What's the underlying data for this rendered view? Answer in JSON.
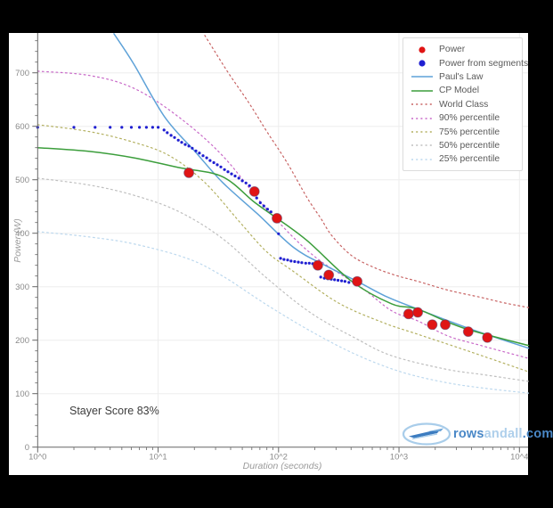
{
  "annotations": {
    "stayer_score": "Stayer Score 83%"
  },
  "logo": {
    "part1": "rows",
    "part2": "andall",
    "part3": ".com"
  },
  "legend": {
    "items": [
      {
        "label": "Power",
        "marker": "dot",
        "color": "#e01414"
      },
      {
        "label": "Power from segments",
        "marker": "dot",
        "color": "#1f1fd1"
      },
      {
        "label": "Paul's Law",
        "marker": "line",
        "color": "#5fa2d8"
      },
      {
        "label": "CP Model",
        "marker": "line",
        "color": "#3c9e3c"
      },
      {
        "label": "World Class",
        "marker": "dash",
        "color": "#c86464"
      },
      {
        "label": "90% percentile",
        "marker": "dash",
        "color": "#c868c8"
      },
      {
        "label": "75% percentile",
        "marker": "dash",
        "color": "#b3b060"
      },
      {
        "label": "50% percentile",
        "marker": "dash",
        "color": "#bfbfbf"
      },
      {
        "label": "25% percentile",
        "marker": "dash",
        "color": "#bcd8ee"
      }
    ]
  },
  "chart_data": {
    "type": "scatter",
    "title": "",
    "xlabel": "Duration (seconds)",
    "ylabel": "Power (W)",
    "x_axis": {
      "scale": "log",
      "range": [
        1,
        12000
      ],
      "tick_labels": [
        "10^0",
        "10^1",
        "10^2",
        "10^3",
        "10^4"
      ],
      "tick_values": [
        1,
        10,
        100,
        1000,
        10000
      ]
    },
    "y_axis": {
      "scale": "linear",
      "range": [
        0,
        775
      ],
      "tick_labels": [
        "0",
        "100",
        "200",
        "300",
        "400",
        "500",
        "600",
        "700"
      ],
      "tick_values": [
        0,
        100,
        200,
        300,
        400,
        500,
        600,
        700
      ]
    },
    "grid": true,
    "legend_position": "top-right",
    "series": [
      {
        "name": "Power",
        "type": "scatter",
        "color": "#e01414",
        "size": 11,
        "points": [
          [
            18,
            513
          ],
          [
            63,
            478
          ],
          [
            97,
            428
          ],
          [
            212,
            340
          ],
          [
            261,
            322
          ],
          [
            450,
            310
          ],
          [
            1200,
            249
          ],
          [
            1430,
            252
          ],
          [
            1890,
            229
          ],
          [
            2420,
            229
          ],
          [
            3760,
            216
          ],
          [
            5420,
            205
          ]
        ]
      },
      {
        "name": "Power from segments",
        "type": "scatter",
        "color": "#1f1fd1",
        "size": 3.2,
        "points": [
          [
            1,
            598
          ],
          [
            2,
            598
          ],
          [
            3,
            598
          ],
          [
            4,
            598
          ],
          [
            5,
            598
          ],
          [
            6,
            598
          ],
          [
            7,
            598
          ],
          [
            8,
            598
          ],
          [
            9,
            598
          ],
          [
            10,
            598
          ],
          [
            11.2,
            593
          ],
          [
            11.9,
            588
          ],
          [
            12.8,
            583
          ],
          [
            13.7,
            579
          ],
          [
            14.7,
            574
          ],
          [
            15.7,
            570
          ],
          [
            16.8,
            566
          ],
          [
            18,
            563
          ],
          [
            19.2,
            559
          ],
          [
            20.6,
            554
          ],
          [
            22,
            550
          ],
          [
            23.6,
            545
          ],
          [
            25.3,
            541
          ],
          [
            27,
            536
          ],
          [
            29,
            532
          ],
          [
            31,
            528
          ],
          [
            33.2,
            524
          ],
          [
            35.6,
            519
          ],
          [
            38,
            515
          ],
          [
            40.7,
            511
          ],
          [
            43.6,
            507
          ],
          [
            46.8,
            503
          ],
          [
            50,
            498
          ],
          [
            53.6,
            494
          ],
          [
            57.4,
            489
          ],
          [
            61.5,
            481
          ],
          [
            65.8,
            466
          ],
          [
            70.5,
            457
          ],
          [
            75.5,
            451
          ],
          [
            80.9,
            445
          ],
          [
            86.6,
            440
          ],
          [
            93,
            423
          ],
          [
            100,
            399
          ],
          [
            104,
            353
          ],
          [
            111,
            351
          ],
          [
            119,
            350
          ],
          [
            127,
            348
          ],
          [
            136,
            347
          ],
          [
            146,
            346
          ],
          [
            156,
            345
          ],
          [
            168,
            344
          ],
          [
            180,
            344
          ],
          [
            192,
            343
          ],
          [
            224,
            318
          ],
          [
            240,
            316
          ],
          [
            256,
            315
          ],
          [
            274,
            314
          ],
          [
            292,
            313
          ],
          [
            312,
            312
          ],
          [
            334,
            311
          ],
          [
            356,
            310
          ],
          [
            384,
            308
          ]
        ]
      },
      {
        "name": "Paul's Law",
        "type": "line",
        "color": "#5fa2d8",
        "dash": "solid",
        "points": [
          [
            4.3,
            773
          ],
          [
            6.3,
            716
          ],
          [
            11.3,
            618
          ],
          [
            20.6,
            551
          ],
          [
            34.3,
            495
          ],
          [
            67,
            436
          ],
          [
            134,
            373
          ],
          [
            243,
            340
          ],
          [
            450,
            310
          ],
          [
            795,
            281
          ],
          [
            1437,
            258
          ],
          [
            4030,
            220
          ],
          [
            11900,
            185
          ]
        ]
      },
      {
        "name": "CP Model",
        "type": "line",
        "color": "#3c9e3c",
        "dash": "solid",
        "points": [
          [
            1,
            560
          ],
          [
            2.7,
            553
          ],
          [
            6.3,
            541
          ],
          [
            14.7,
            523
          ],
          [
            34,
            506
          ],
          [
            63,
            458
          ],
          [
            97,
            428
          ],
          [
            173,
            386
          ],
          [
            405,
            310
          ],
          [
            869,
            268
          ],
          [
            1437,
            258
          ],
          [
            3400,
            223
          ],
          [
            11900,
            190
          ]
        ]
      },
      {
        "name": "World Class",
        "type": "line",
        "color": "#c86464",
        "dash": "dotted",
        "points": [
          [
            24.4,
            770
          ],
          [
            37.5,
            703
          ],
          [
            57,
            643
          ],
          [
            80,
            590
          ],
          [
            117,
            533
          ],
          [
            173,
            466
          ],
          [
            224,
            428
          ],
          [
            278,
            395
          ],
          [
            405,
            358
          ],
          [
            620,
            336
          ],
          [
            948,
            321
          ],
          [
            1437,
            310
          ],
          [
            2610,
            293
          ],
          [
            4800,
            280
          ],
          [
            7400,
            270
          ],
          [
            11900,
            261
          ]
        ]
      },
      {
        "name": "90% percentile",
        "type": "line",
        "color": "#c868c8",
        "dash": "dotted",
        "points": [
          [
            1,
            703
          ],
          [
            2.7,
            695
          ],
          [
            6.3,
            671
          ],
          [
            14.7,
            618
          ],
          [
            34.3,
            545
          ],
          [
            80,
            445
          ],
          [
            188,
            361
          ],
          [
            490,
            298
          ],
          [
            869,
            255
          ],
          [
            1437,
            236
          ],
          [
            2540,
            208
          ],
          [
            4800,
            190
          ],
          [
            11900,
            166
          ]
        ]
      },
      {
        "name": "75% percentile",
        "type": "line",
        "color": "#b3b060",
        "dash": "dotted",
        "points": [
          [
            1,
            603
          ],
          [
            2.7,
            590
          ],
          [
            6.3,
            570
          ],
          [
            12.4,
            545
          ],
          [
            24.4,
            495
          ],
          [
            48,
            420
          ],
          [
            80,
            365
          ],
          [
            134,
            328
          ],
          [
            312,
            270
          ],
          [
            736,
            233
          ],
          [
            1437,
            211
          ],
          [
            3400,
            183
          ],
          [
            11900,
            141
          ]
        ]
      },
      {
        "name": "50% percentile",
        "type": "line",
        "color": "#bfbfbf",
        "dash": "dotted",
        "points": [
          [
            1,
            503
          ],
          [
            2.7,
            490
          ],
          [
            6.3,
            471
          ],
          [
            14.7,
            441
          ],
          [
            34.3,
            390
          ],
          [
            80,
            316
          ],
          [
            188,
            250
          ],
          [
            441,
            203
          ],
          [
            869,
            171
          ],
          [
            2420,
            146
          ],
          [
            5200,
            135
          ],
          [
            11900,
            123
          ]
        ]
      },
      {
        "name": "25% percentile",
        "type": "line",
        "color": "#bcd8ee",
        "dash": "dotted",
        "points": [
          [
            1,
            403
          ],
          [
            2.7,
            393
          ],
          [
            6.3,
            380
          ],
          [
            17.4,
            353
          ],
          [
            34.3,
            320
          ],
          [
            80,
            266
          ],
          [
            188,
            216
          ],
          [
            441,
            173
          ],
          [
            1030,
            141
          ],
          [
            2420,
            121
          ],
          [
            5200,
            110
          ],
          [
            11900,
            101
          ]
        ]
      }
    ]
  }
}
